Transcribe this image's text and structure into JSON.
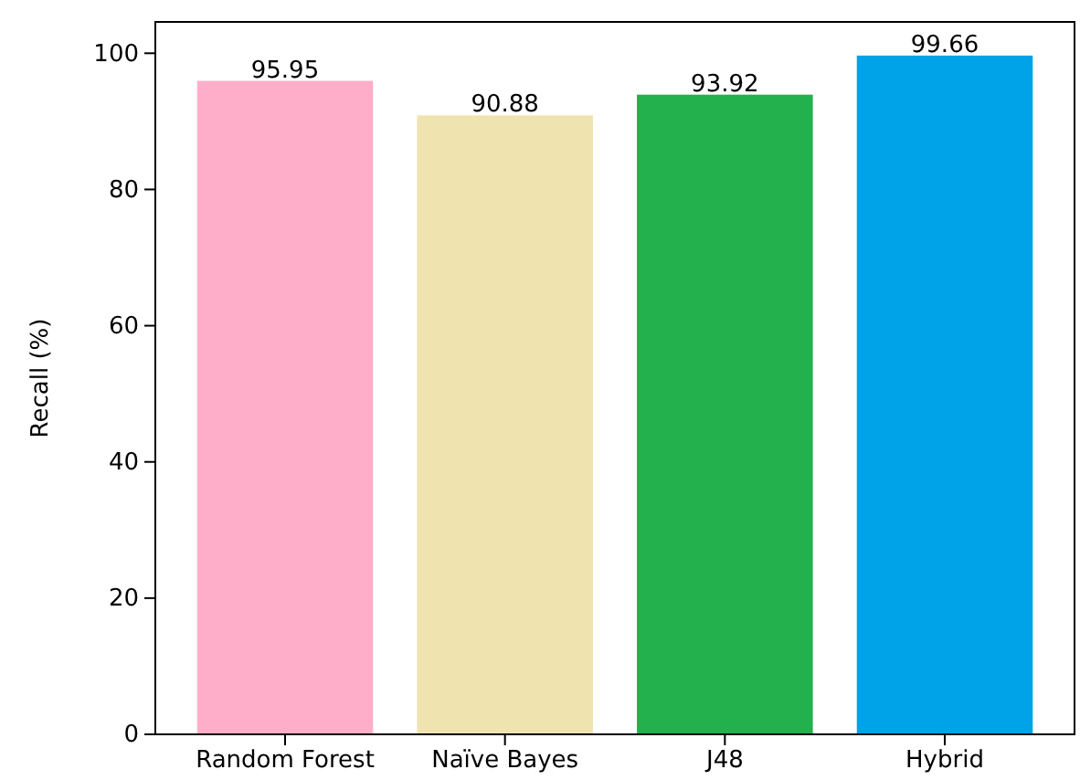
{
  "chart_data": {
    "type": "bar",
    "ylabel": "Recall (%)",
    "categories": [
      "Random Forest",
      "Naïve Bayes",
      "J48",
      "Hybrid"
    ],
    "values": [
      95.95,
      90.88,
      93.92,
      99.66
    ],
    "colors": [
      "#ffaec9",
      "#efe4b0",
      "#22b14c",
      "#00a2e8"
    ],
    "ylim": [
      0,
      104.6
    ],
    "yticks": [
      0,
      20,
      40,
      60,
      80,
      100
    ],
    "data_labels": true
  }
}
